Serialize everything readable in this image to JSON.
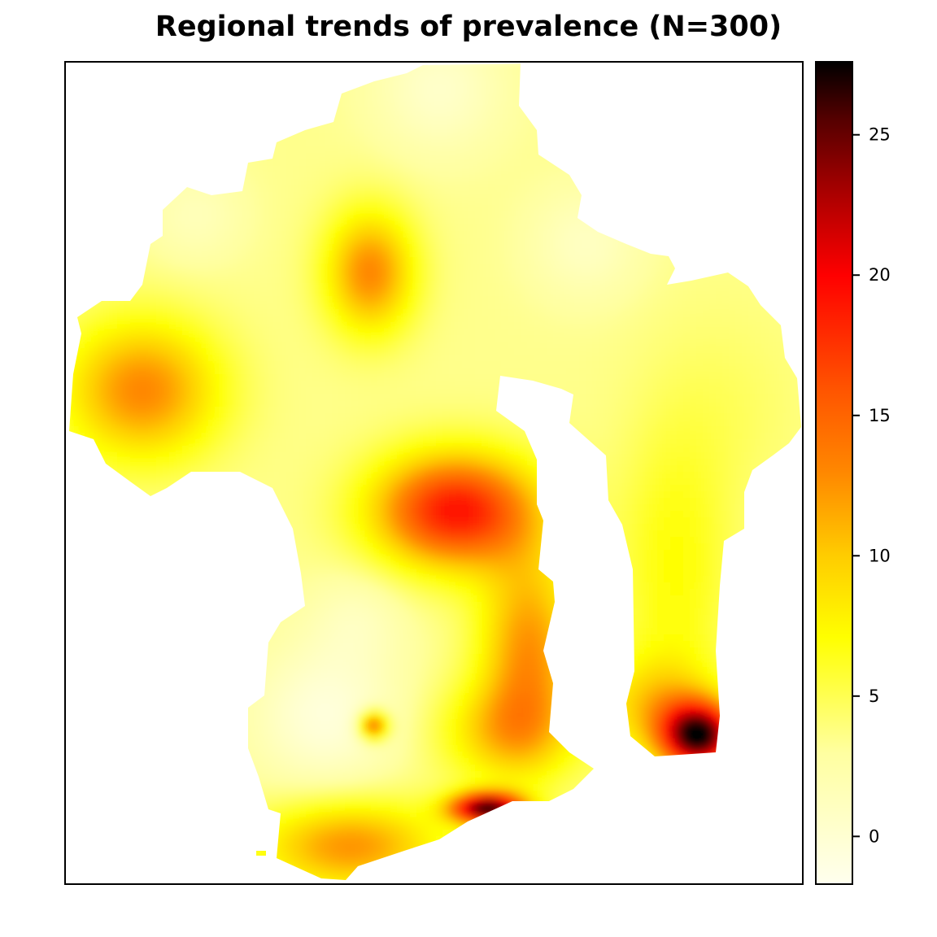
{
  "title": "Regional trends of prevalence (N=300)",
  "colorbar": {
    "min": -1.7,
    "max": 27.6,
    "ticks": [
      {
        "value": 0,
        "label": "0"
      },
      {
        "value": 5,
        "label": "5"
      },
      {
        "value": 10,
        "label": "10"
      },
      {
        "value": 15,
        "label": "15"
      },
      {
        "value": 20,
        "label": "20"
      },
      {
        "value": 25,
        "label": "25"
      }
    ],
    "palette": [
      "#ffffee",
      "#ffffa0",
      "#ffff00",
      "#ffcc00",
      "#ff8800",
      "#ff5500",
      "#ff0000",
      "#aa0000",
      "#550000",
      "#000000"
    ]
  },
  "chart_data": {
    "type": "heatmap",
    "title": "Regional trends of prevalence (N=300)",
    "value_range": [
      -1.7,
      27.6
    ],
    "colorbar_ticks": [
      0,
      5,
      10,
      15,
      20,
      25
    ],
    "base_value": 3.5,
    "hotspots": [
      {
        "area": "west lobe",
        "peak_value": 13
      },
      {
        "area": "north-central oval",
        "peak_value": 13
      },
      {
        "area": "central",
        "peak_value": 19
      },
      {
        "area": "south-central spot",
        "peak_value": 15
      },
      {
        "area": "south coast",
        "peak_value": 26
      },
      {
        "area": "east peninsula tip",
        "peak_value": 26
      }
    ]
  }
}
